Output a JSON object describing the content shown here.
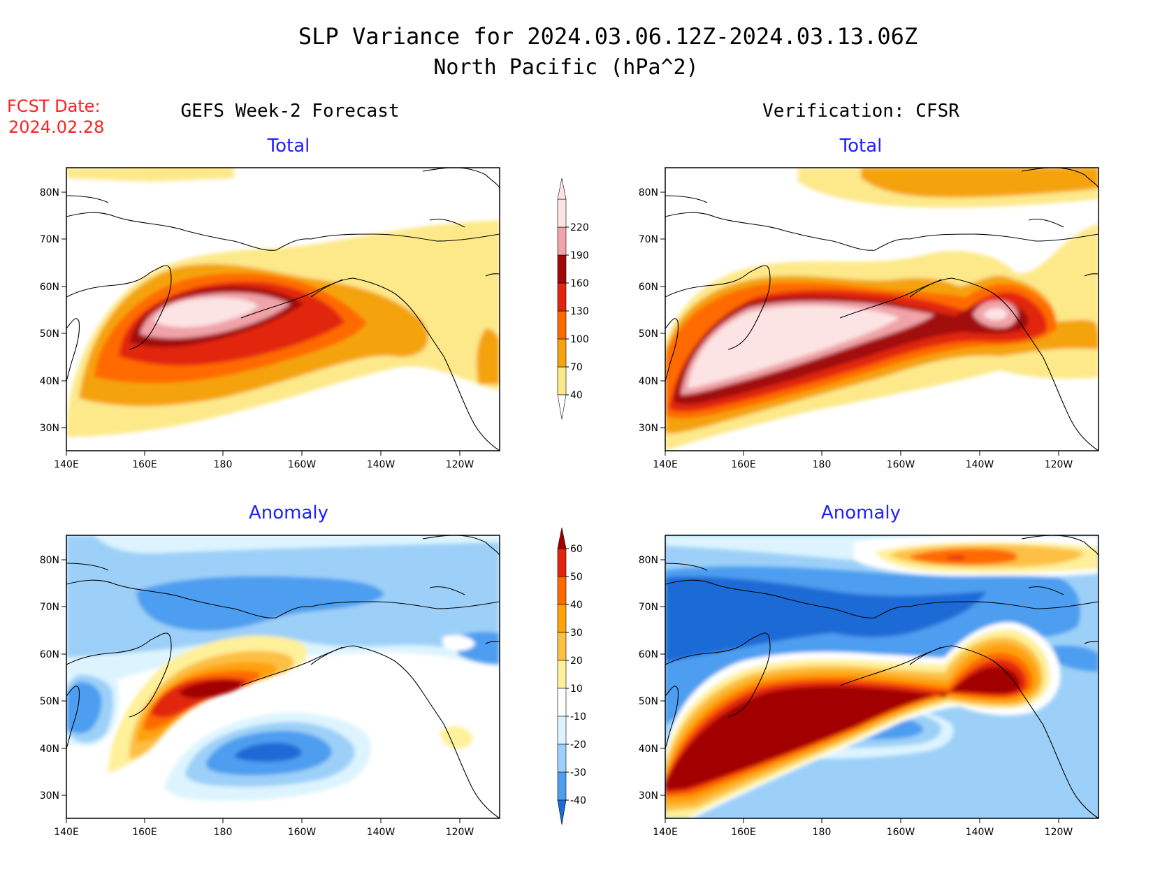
{
  "title": {
    "line1": "SLP Variance for 2024.03.06.12Z-2024.03.13.06Z",
    "line2": "North Pacific (hPa^2)"
  },
  "fcst_date": {
    "label": "FCST Date:",
    "value": "2024.02.28"
  },
  "columns": {
    "left": "GEFS Week-2 Forecast",
    "right": "Verification: CFSR"
  },
  "panel_titles": {
    "total": "Total",
    "anomaly": "Anomaly"
  },
  "axes": {
    "lon_labels": [
      "140E",
      "160E",
      "180",
      "160W",
      "140W",
      "120W"
    ],
    "lat_labels": [
      "80N",
      "70N",
      "60N",
      "50N",
      "40N",
      "30N"
    ]
  },
  "colorbars": {
    "total": {
      "levels": [
        "40",
        "70",
        "100",
        "130",
        "160",
        "190",
        "220"
      ],
      "colors": [
        "#fde98a",
        "#f5a310",
        "#ff6a00",
        "#e2250f",
        "#a20a0a",
        "#f0a3a8",
        "#fde4e4"
      ]
    },
    "anomaly": {
      "levels": [
        "60",
        "50",
        "40",
        "30",
        "20",
        "10",
        "-10",
        "-20",
        "-30",
        "-40"
      ],
      "colors": [
        "#a20000",
        "#e2250f",
        "#ff6a00",
        "#ffa20a",
        "#fdc045",
        "#fff09a",
        "#ffffff",
        "#ddf4ff",
        "#9dd0f8",
        "#4e9ef0",
        "#1c6ad6"
      ]
    }
  },
  "chart_data": {
    "type": "heatmap",
    "variable": "SLP Variance",
    "units": "hPa^2",
    "lon_range": [
      "140E",
      "110W"
    ],
    "lat_range": [
      25,
      85
    ],
    "panels": [
      {
        "column": "GEFS Week-2 Forecast",
        "field": "Total",
        "max_region": "~50N 175E",
        "max_value": ">220"
      },
      {
        "column": "Verification: CFSR",
        "field": "Total",
        "max_region": "45N 155E-170W and 50N 140W",
        "max_value": ">220"
      },
      {
        "column": "GEFS Week-2 Forecast",
        "field": "Anomaly",
        "max_region": "~53N 180",
        "max_value": ">60",
        "min_region": "~41N 170W",
        "min_value": "<-30"
      },
      {
        "column": "Verification: CFSR",
        "field": "Anomaly",
        "max_region": "45N 150E-130W",
        "max_value": ">60",
        "min_region": "~70N 170E-160W",
        "min_value": "<-30"
      }
    ]
  }
}
